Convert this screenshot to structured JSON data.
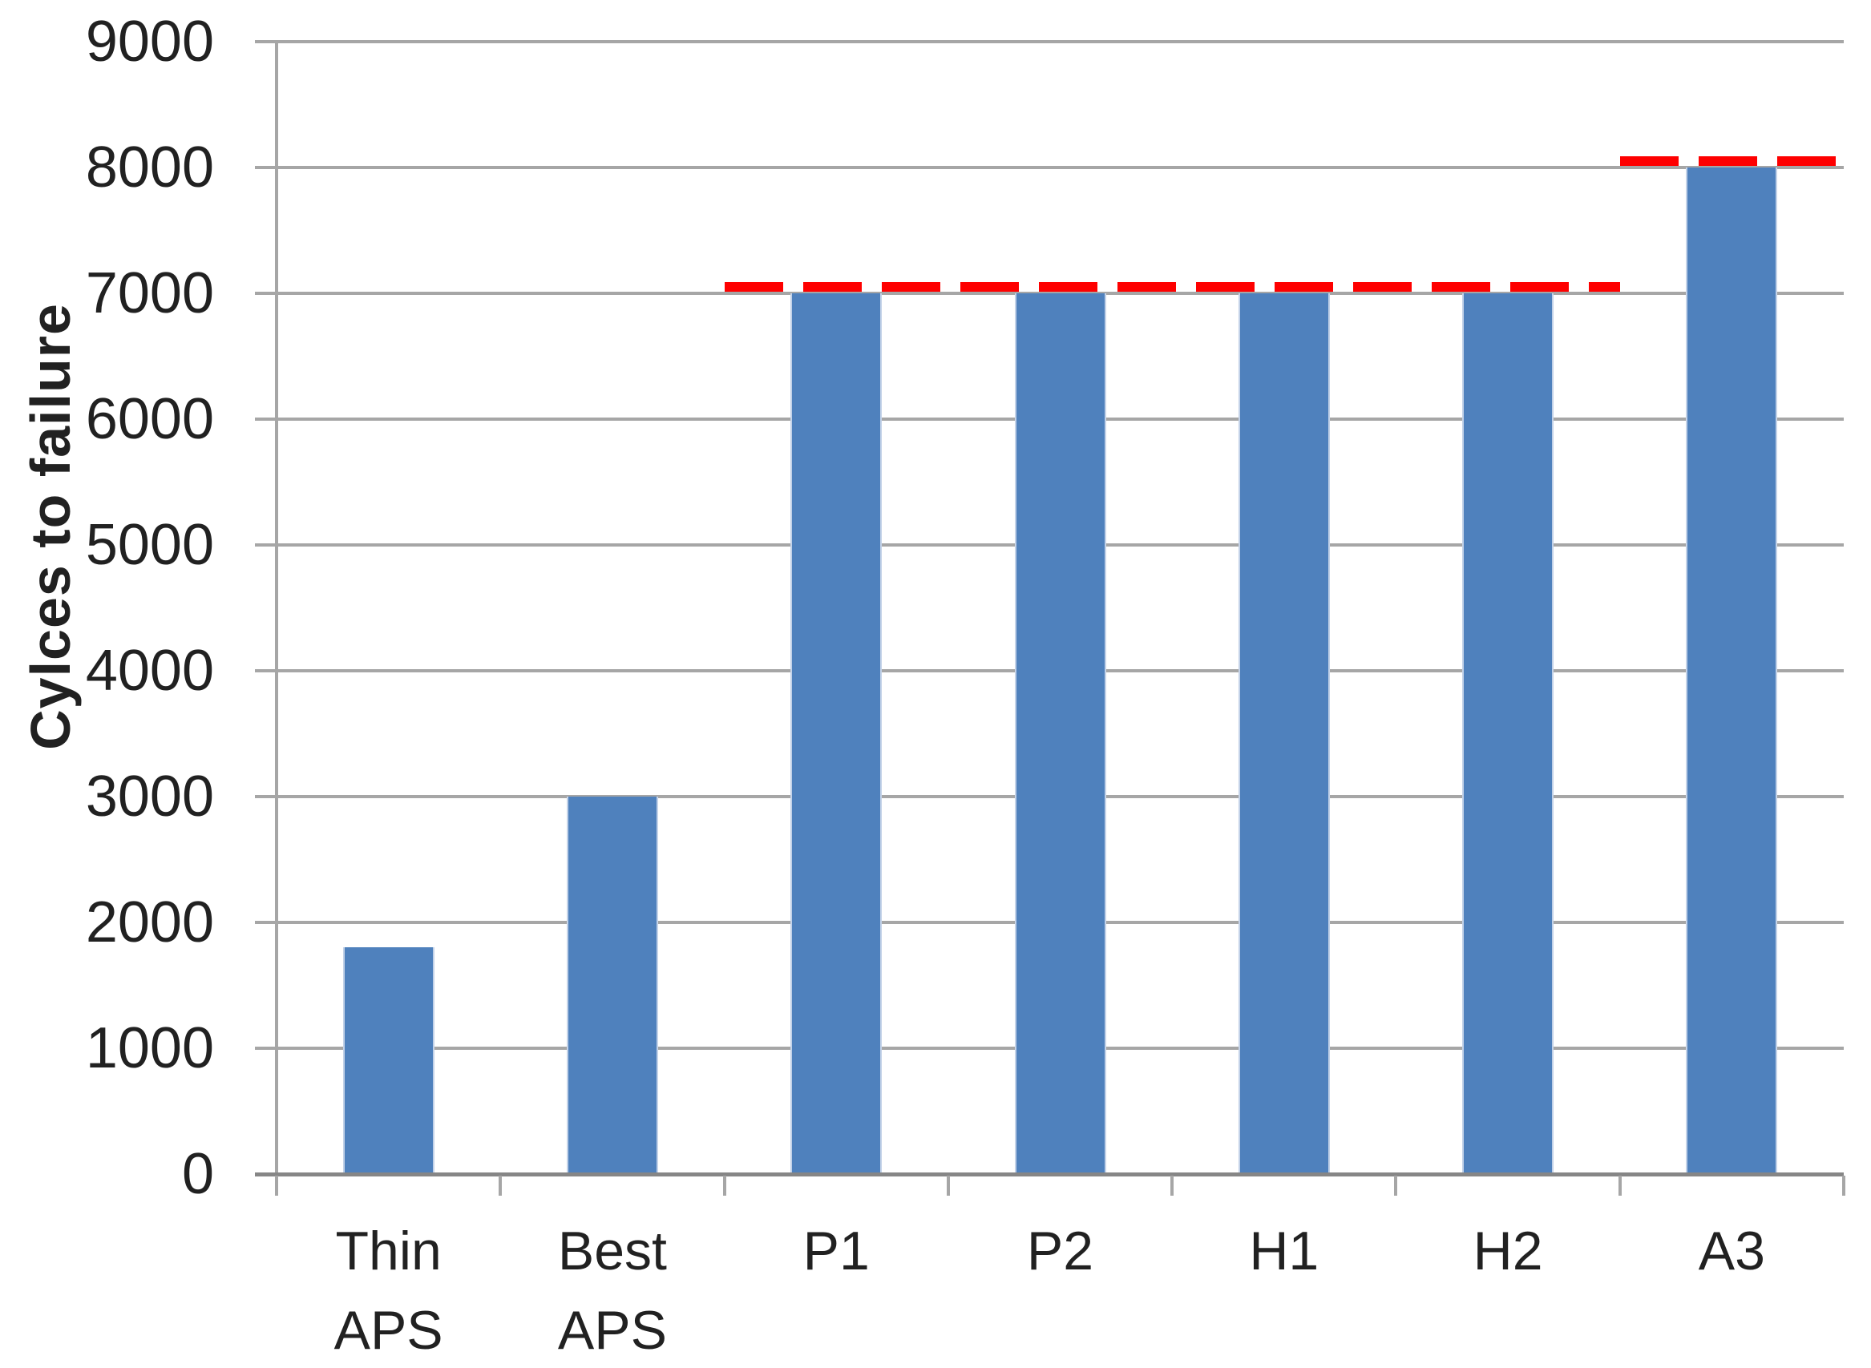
{
  "chart_data": {
    "type": "bar",
    "title": "",
    "xlabel": "",
    "ylabel": "Cylces to failure",
    "categories": [
      "Thin APS",
      "Best APS",
      "P1",
      "P2",
      "H1",
      "H2",
      "A3"
    ],
    "category_label_lines": [
      [
        "Thin",
        "APS"
      ],
      [
        "Best",
        "APS"
      ],
      [
        "P1"
      ],
      [
        "P2"
      ],
      [
        "H1"
      ],
      [
        "H2"
      ],
      [
        "A3"
      ]
    ],
    "values": [
      1800,
      3000,
      7000,
      7000,
      7000,
      7000,
      8000
    ],
    "ylim": [
      0,
      9000
    ],
    "ytick_interval": 1000,
    "yticks": [
      0,
      1000,
      2000,
      3000,
      4000,
      5000,
      6000,
      7000,
      8000,
      9000
    ],
    "grid": true,
    "legend_position": "none",
    "colors": {
      "bar_fill": "#4f81bd",
      "bar_edge": "#c3d2e8",
      "reference_line": "#fe0000",
      "gridline": "#a6a6a6",
      "axis": "#868686",
      "text": "#212121"
    },
    "reference_lines": [
      {
        "value": 7000,
        "style": "dashed",
        "color": "#fe0000",
        "from_category_index": 2,
        "to_category_index": 5
      },
      {
        "value": 8000,
        "style": "dashed",
        "color": "#fe0000",
        "from_category_index": 6,
        "to_category_index": 6
      }
    ]
  }
}
